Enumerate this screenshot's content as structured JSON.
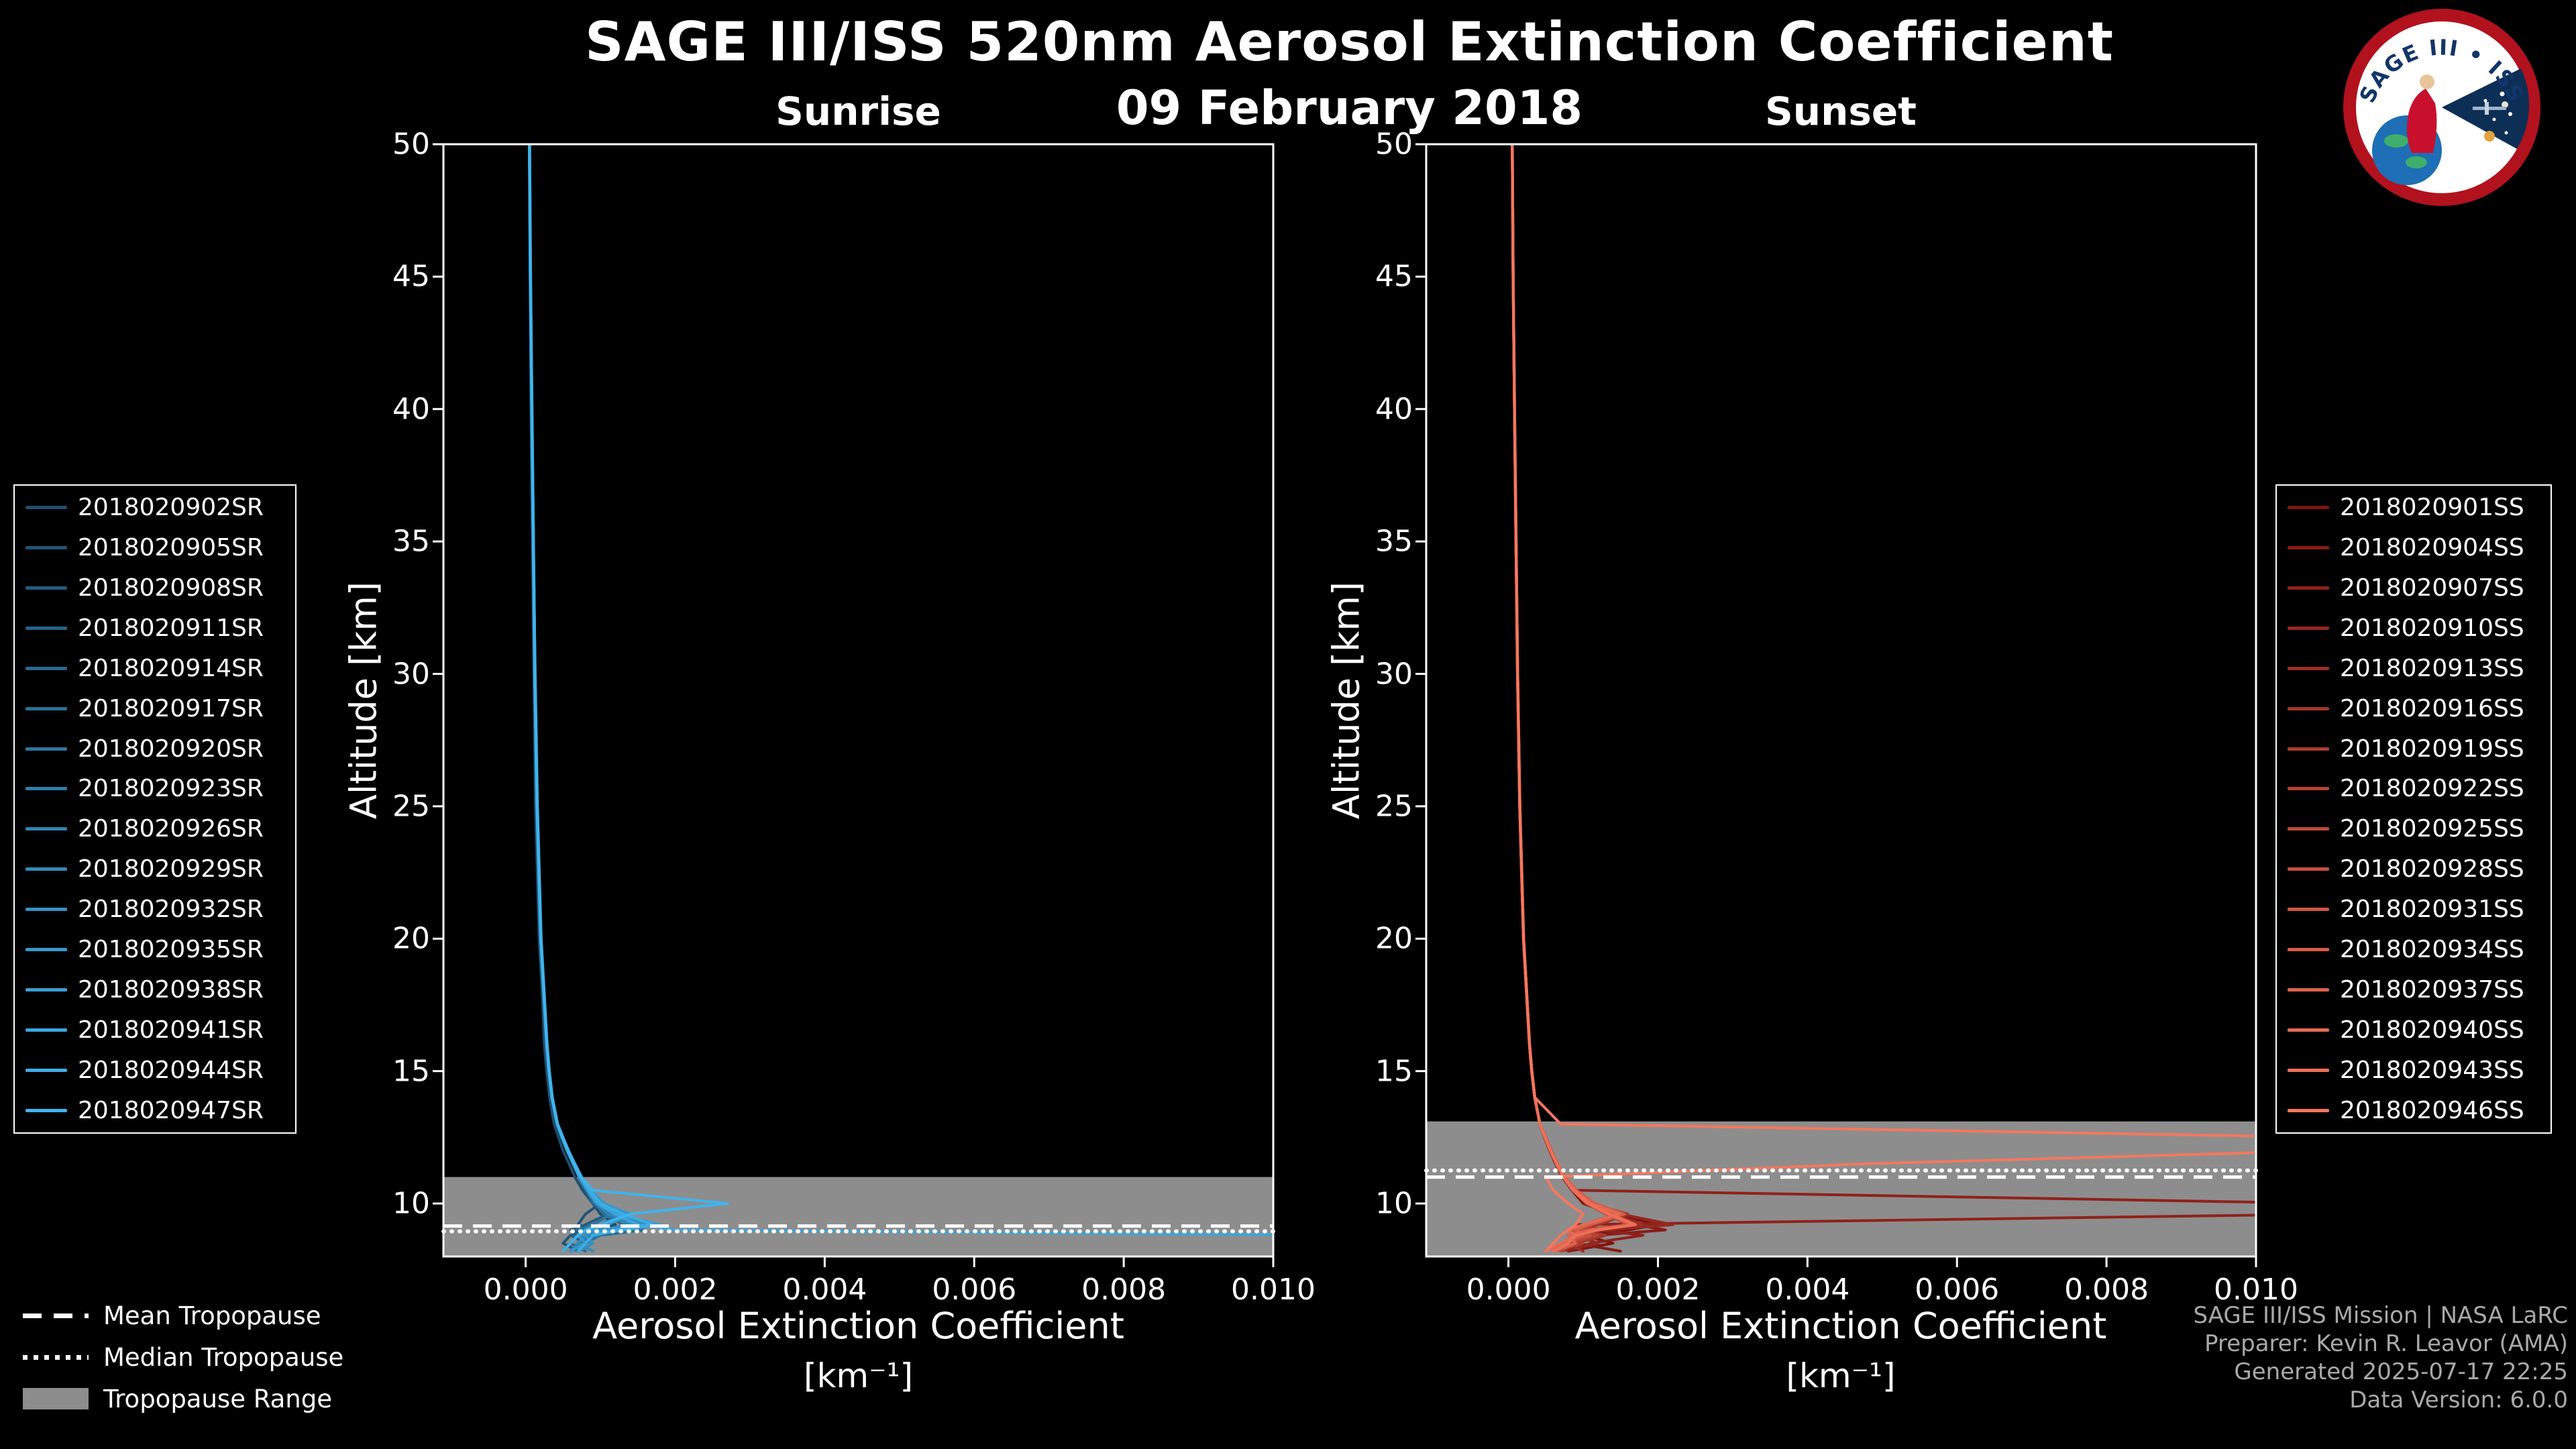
{
  "header": {
    "title": "SAGE III/ISS 520nm Aerosol Extinction Coefficient",
    "date": "09 February 2018"
  },
  "logo": {
    "arc_text": "SAGE III • ISS"
  },
  "colors": {
    "background": "#000000",
    "text": "#ffffff",
    "tropopause_band": "#8d8d8d",
    "tropopause_line": "#ffffff",
    "credits_text": "#a9a9a9"
  },
  "tropopause_legend": {
    "items": [
      {
        "label": "Mean Tropopause",
        "style": "dashed"
      },
      {
        "label": "Median Tropopause",
        "style": "dotted"
      },
      {
        "label": "Tropopause Range",
        "style": "patch"
      }
    ]
  },
  "credits": {
    "lines": [
      "SAGE III/ISS Mission | NASA LaRC",
      "Preparer: Kevin R. Leavor (AMA)",
      "Generated 2025-07-17 22:25",
      "Data Version: 6.0.0"
    ]
  },
  "chart_data": [
    {
      "type": "line",
      "title": "Sunrise",
      "ylabel": "Altitude [km]",
      "xlabel_line1": "Aerosol Extinction Coefficient",
      "xlabel_line2": "[km⁻¹]",
      "xlim": [
        -0.0011,
        0.01
      ],
      "ylim": [
        8,
        50
      ],
      "xticks": [
        0,
        0.002,
        0.004,
        0.006,
        0.008,
        0.01
      ],
      "xtick_labels": [
        "0.000",
        "0.002",
        "0.004",
        "0.006",
        "0.008",
        "0.010"
      ],
      "yticks": [
        10,
        15,
        20,
        25,
        30,
        35,
        40,
        45,
        50
      ],
      "unit_scale": 0.0001,
      "values_unit": "1e-4 km⁻¹",
      "altitudes_km": [
        50,
        45,
        40,
        35,
        30,
        25,
        22,
        20,
        18,
        16,
        15,
        14,
        13,
        12.5,
        12,
        11.5,
        11,
        10.5,
        10,
        9.6,
        9.2,
        9.0,
        8.8,
        8.5,
        8.2
      ],
      "color_start": "#1f4e6e",
      "color_end": "#3fb4ed",
      "tropopause": {
        "mean_km": 9.15,
        "median_km": 8.95,
        "range_km": [
          8.0,
          11.0
        ]
      },
      "series": [
        {
          "name": "2018020902SR",
          "values": [
            0.5,
            0.6,
            0.7,
            0.9,
            1.1,
            1.3,
            1.6,
            1.8,
            2.2,
            2.5,
            2.8,
            3.2,
            3.8,
            4.4,
            5.0,
            5.8,
            6.6,
            7.6,
            9.0,
            10,
            12,
            9,
            7,
            6,
            5
          ]
        },
        {
          "name": "2018020905SR",
          "values": [
            0.5,
            0.6,
            0.8,
            1.0,
            1.3,
            1.6,
            1.9,
            2.1,
            2.5,
            2.9,
            3.2,
            3.6,
            4.3,
            5.0,
            5.7,
            6.5,
            7.4,
            8.5,
            10,
            8,
            7,
            9,
            6,
            5,
            7
          ]
        },
        {
          "name": "2018020908SR",
          "values": [
            0.55,
            0.65,
            0.85,
            1.05,
            1.25,
            1.55,
            1.85,
            2.05,
            2.45,
            2.85,
            3.15,
            3.55,
            4.25,
            4.9,
            5.6,
            6.4,
            7.2,
            8.2,
            9.5,
            11,
            8,
            6,
            9,
            7,
            6
          ]
        },
        {
          "name": "2018020911SR",
          "values": [
            0.5,
            0.62,
            0.82,
            1.02,
            1.22,
            1.52,
            1.82,
            2.02,
            2.42,
            2.82,
            3.12,
            3.52,
            4.22,
            4.8,
            5.5,
            6.3,
            7.1,
            8.0,
            9.0,
            13,
            10,
            8,
            6,
            8,
            6
          ]
        },
        {
          "name": "2018020914SR",
          "values": [
            0.52,
            0.64,
            0.84,
            1.04,
            1.24,
            1.54,
            1.84,
            2.04,
            2.44,
            2.84,
            3.14,
            3.54,
            4.24,
            4.95,
            5.65,
            6.45,
            7.3,
            8.4,
            9.8,
            12,
            15,
            9,
            7,
            6,
            8
          ]
        },
        {
          "name": "2018020917SR",
          "values": [
            0.48,
            0.6,
            0.78,
            0.98,
            1.18,
            1.48,
            1.78,
            1.98,
            2.38,
            2.78,
            3.08,
            3.48,
            4.18,
            4.85,
            5.55,
            6.35,
            7.15,
            8.1,
            9.2,
            10.5,
            13,
            16,
            10,
            7,
            6
          ]
        },
        {
          "name": "2018020920SR",
          "values": [
            0.5,
            0.63,
            0.83,
            1.03,
            1.23,
            1.53,
            1.83,
            2.03,
            2.43,
            2.83,
            3.13,
            3.53,
            4.23,
            4.9,
            5.6,
            6.4,
            7.25,
            8.3,
            9.6,
            11.5,
            9,
            7,
            10,
            8,
            6
          ]
        },
        {
          "name": "2018020923SR",
          "values": [
            0.53,
            0.66,
            0.86,
            1.06,
            1.26,
            1.56,
            1.86,
            2.06,
            2.46,
            2.86,
            3.16,
            3.56,
            4.26,
            5.0,
            5.7,
            6.5,
            7.4,
            8.6,
            10.2,
            13.5,
            10,
            8,
            7,
            9,
            7
          ]
        },
        {
          "name": "2018020926SR",
          "values": [
            0.49,
            0.61,
            0.8,
            1.0,
            1.2,
            1.5,
            1.8,
            2.0,
            2.4,
            2.8,
            3.1,
            3.5,
            4.2,
            4.9,
            5.6,
            6.4,
            7.2,
            8.2,
            9.4,
            11,
            14,
            10,
            8,
            7,
            6
          ]
        },
        {
          "name": "2018020929SR",
          "values": [
            0.51,
            0.64,
            0.83,
            1.03,
            1.24,
            1.54,
            1.84,
            2.05,
            2.45,
            2.85,
            3.15,
            3.55,
            4.25,
            4.95,
            5.65,
            6.5,
            7.35,
            8.5,
            10,
            12.5,
            16,
            11,
            8,
            7,
            9
          ]
        },
        {
          "name": "2018020932SR",
          "values": [
            0.5,
            0.62,
            0.81,
            1.01,
            1.22,
            1.52,
            1.82,
            2.02,
            2.42,
            2.82,
            3.12,
            3.52,
            4.22,
            4.9,
            5.6,
            6.45,
            7.3,
            8.4,
            9.7,
            11.8,
            14.5,
            10,
            8,
            9,
            7
          ]
        },
        {
          "name": "2018020935SR",
          "values": [
            0.52,
            0.65,
            0.84,
            1.05,
            1.25,
            1.55,
            1.85,
            2.05,
            2.45,
            2.85,
            3.15,
            3.55,
            4.25,
            5.0,
            5.75,
            6.6,
            7.5,
            8.8,
            10.5,
            14,
            11,
            9,
            7,
            8,
            6
          ]
        },
        {
          "name": "2018020938SR",
          "values": [
            0.5,
            0.62,
            0.8,
            1.0,
            1.2,
            1.5,
            1.8,
            2.0,
            2.4,
            2.8,
            3.1,
            3.5,
            4.2,
            4.85,
            5.55,
            6.35,
            7.2,
            8.3,
            9.5,
            12,
            18,
            13,
            9,
            8,
            7
          ]
        },
        {
          "name": "2018020941SR",
          "values": [
            0.5,
            0.63,
            0.82,
            1.02,
            1.23,
            1.53,
            1.83,
            2.03,
            2.43,
            2.83,
            3.13,
            3.53,
            4.23,
            4.9,
            5.6,
            6.4,
            7.3,
            8.4,
            9.8,
            12,
            15,
            20,
            110,
            110,
            null
          ]
        },
        {
          "name": "2018020944SR",
          "values": [
            0.54,
            0.67,
            0.86,
            1.06,
            1.27,
            1.57,
            1.87,
            2.07,
            2.47,
            2.87,
            3.17,
            3.57,
            4.27,
            5.0,
            5.7,
            6.55,
            7.45,
            8.6,
            10,
            13,
            17,
            12,
            9,
            8,
            7
          ]
        },
        {
          "name": "2018020947SR",
          "values": [
            0.5,
            0.62,
            0.82,
            1.02,
            1.22,
            1.52,
            1.82,
            2.02,
            2.42,
            2.82,
            3.12,
            3.52,
            4.22,
            4.9,
            5.65,
            6.5,
            7.4,
            9.0,
            27,
            14,
            10,
            8,
            7,
            6,
            5
          ]
        }
      ]
    },
    {
      "type": "line",
      "title": "Sunset",
      "ylabel": "Altitude [km]",
      "xlabel_line1": "Aerosol Extinction Coefficient",
      "xlabel_line2": "[km⁻¹]",
      "xlim": [
        -0.0011,
        0.01
      ],
      "ylim": [
        8,
        50
      ],
      "xticks": [
        0,
        0.002,
        0.004,
        0.006,
        0.008,
        0.01
      ],
      "xtick_labels": [
        "0.000",
        "0.002",
        "0.004",
        "0.006",
        "0.008",
        "0.010"
      ],
      "yticks": [
        10,
        15,
        20,
        25,
        30,
        35,
        40,
        45,
        50
      ],
      "unit_scale": 0.0001,
      "values_unit": "1e-4 km⁻¹",
      "altitudes_km": [
        50,
        45,
        40,
        35,
        30,
        25,
        22,
        20,
        18,
        16,
        15,
        14,
        13,
        12.5,
        12,
        11.5,
        11,
        10.5,
        10,
        9.6,
        9.2,
        9.0,
        8.8,
        8.5,
        8.2
      ],
      "color_start": "#7f1410",
      "color_end": "#f5775e",
      "tropopause": {
        "mean_km": 11.0,
        "median_km": 11.25,
        "range_km": [
          8.0,
          13.1
        ]
      },
      "series": [
        {
          "name": "2018020901SS",
          "values": [
            0.5,
            0.6,
            0.8,
            1.0,
            1.2,
            1.5,
            1.8,
            2.0,
            2.4,
            2.8,
            3.1,
            3.5,
            4.2,
            4.8,
            5.5,
            6.3,
            7.2,
            8.5,
            10,
            14,
            20,
            16,
            10,
            14,
            8
          ]
        },
        {
          "name": "2018020904SS",
          "values": [
            0.52,
            0.63,
            0.82,
            1.02,
            1.22,
            1.52,
            1.82,
            2.02,
            2.42,
            2.82,
            3.12,
            3.52,
            4.22,
            4.9,
            5.6,
            6.4,
            7.3,
            8.6,
            10.5,
            13,
            17,
            21,
            12,
            9,
            15
          ]
        },
        {
          "name": "2018020907SS",
          "values": [
            0.5,
            0.62,
            0.8,
            1.0,
            1.2,
            1.5,
            1.8,
            2.0,
            2.4,
            2.8,
            3.1,
            3.5,
            4.2,
            4.85,
            5.55,
            6.35,
            7.25,
            9,
            110,
            110,
            9,
            12,
            18,
            11,
            8
          ]
        },
        {
          "name": "2018020910SS",
          "values": [
            0.51,
            0.63,
            0.81,
            1.01,
            1.21,
            1.51,
            1.81,
            2.01,
            2.41,
            2.81,
            3.11,
            3.51,
            4.21,
            4.9,
            5.6,
            6.45,
            7.35,
            8.8,
            11,
            15,
            22,
            13,
            9,
            12,
            7
          ]
        },
        {
          "name": "2018020913SS",
          "values": [
            0.5,
            0.62,
            0.8,
            1.0,
            1.21,
            1.51,
            1.81,
            2.02,
            2.42,
            2.82,
            3.12,
            3.52,
            4.22,
            4.9,
            5.65,
            6.5,
            7.4,
            8.7,
            10.8,
            14,
            18,
            12,
            9,
            8,
            10
          ]
        },
        {
          "name": "2018020916SS",
          "values": [
            0.52,
            0.64,
            0.82,
            1.02,
            1.23,
            1.53,
            1.83,
            2.03,
            2.43,
            2.83,
            3.13,
            3.53,
            4.23,
            4.95,
            5.7,
            6.55,
            7.45,
            8.9,
            11,
            16,
            12,
            10,
            13,
            9,
            7
          ]
        },
        {
          "name": "2018020919SS",
          "values": [
            0.5,
            0.62,
            0.8,
            1.0,
            1.2,
            1.5,
            1.8,
            2.0,
            2.4,
            2.8,
            3.1,
            3.5,
            4.2,
            4.85,
            5.55,
            6.4,
            7.3,
            8.6,
            10.4,
            13.5,
            17,
            11,
            8,
            10,
            6
          ]
        },
        {
          "name": "2018020922SS",
          "values": [
            0.53,
            0.65,
            0.84,
            1.04,
            1.25,
            1.55,
            1.85,
            2.05,
            2.45,
            2.85,
            3.15,
            3.55,
            4.25,
            5.0,
            5.75,
            6.6,
            7.5,
            9.0,
            11.5,
            15,
            11,
            9,
            12,
            8,
            6
          ]
        },
        {
          "name": "2018020925SS",
          "values": [
            0.5,
            0.62,
            0.8,
            1.0,
            1.2,
            1.5,
            1.8,
            2.0,
            2.4,
            2.8,
            3.1,
            3.5,
            4.2,
            4.9,
            5.6,
            6.45,
            7.35,
            8.7,
            10.6,
            13,
            16,
            10,
            8,
            9,
            7
          ]
        },
        {
          "name": "2018020928SS",
          "values": [
            0.52,
            0.64,
            0.83,
            1.03,
            1.24,
            1.54,
            1.84,
            2.04,
            2.44,
            2.84,
            3.14,
            3.54,
            4.24,
            4.95,
            5.7,
            6.55,
            7.5,
            9.0,
            11.2,
            14.5,
            10,
            8,
            11,
            7,
            6
          ]
        },
        {
          "name": "2018020931SS",
          "values": [
            0.5,
            0.62,
            0.81,
            1.01,
            1.22,
            1.52,
            1.82,
            2.02,
            2.42,
            2.82,
            3.12,
            3.52,
            4.22,
            4.9,
            5.65,
            6.5,
            7.4,
            8.8,
            10.9,
            13.8,
            17,
            12,
            9,
            8,
            6
          ]
        },
        {
          "name": "2018020934SS",
          "values": [
            0.52,
            0.64,
            0.82,
            1.02,
            1.23,
            1.53,
            1.83,
            2.03,
            2.43,
            2.83,
            3.13,
            3.53,
            4.23,
            4.95,
            5.7,
            6.6,
            7.55,
            9.1,
            11.6,
            15.5,
            11,
            9,
            10,
            7,
            6
          ]
        },
        {
          "name": "2018020937SS",
          "values": [
            0.5,
            0.62,
            0.8,
            1.0,
            1.2,
            1.5,
            1.8,
            2.0,
            2.4,
            2.8,
            3.1,
            3.5,
            4.2,
            4.85,
            5.6,
            6.4,
            7.3,
            8.6,
            10.5,
            13.2,
            16.5,
            11,
            8,
            9,
            6
          ]
        },
        {
          "name": "2018020940SS",
          "values": [
            0.52,
            0.64,
            0.82,
            1.03,
            1.24,
            1.54,
            1.84,
            2.04,
            2.44,
            2.84,
            3.14,
            3.54,
            4.24,
            4.95,
            5.7,
            6.55,
            7.45,
            8.9,
            11,
            14.8,
            10,
            8,
            9,
            7,
            5
          ]
        },
        {
          "name": "2018020943SS",
          "values": [
            0.5,
            0.62,
            0.8,
            1.0,
            1.21,
            1.51,
            1.81,
            2.01,
            2.41,
            2.81,
            3.11,
            3.51,
            4.21,
            4.9,
            5.6,
            6.45,
            7.35,
            8.7,
            10.7,
            13.5,
            17,
            12,
            9,
            8,
            6
          ]
        },
        {
          "name": "2018020946SS",
          "values": [
            0.52,
            0.64,
            0.83,
            1.03,
            1.24,
            1.54,
            1.84,
            2.04,
            2.44,
            2.84,
            3.14,
            3.54,
            7,
            110,
            110,
            48,
            5,
            6,
            8,
            10,
            9,
            8,
            7,
            6,
            5
          ]
        }
      ]
    }
  ]
}
